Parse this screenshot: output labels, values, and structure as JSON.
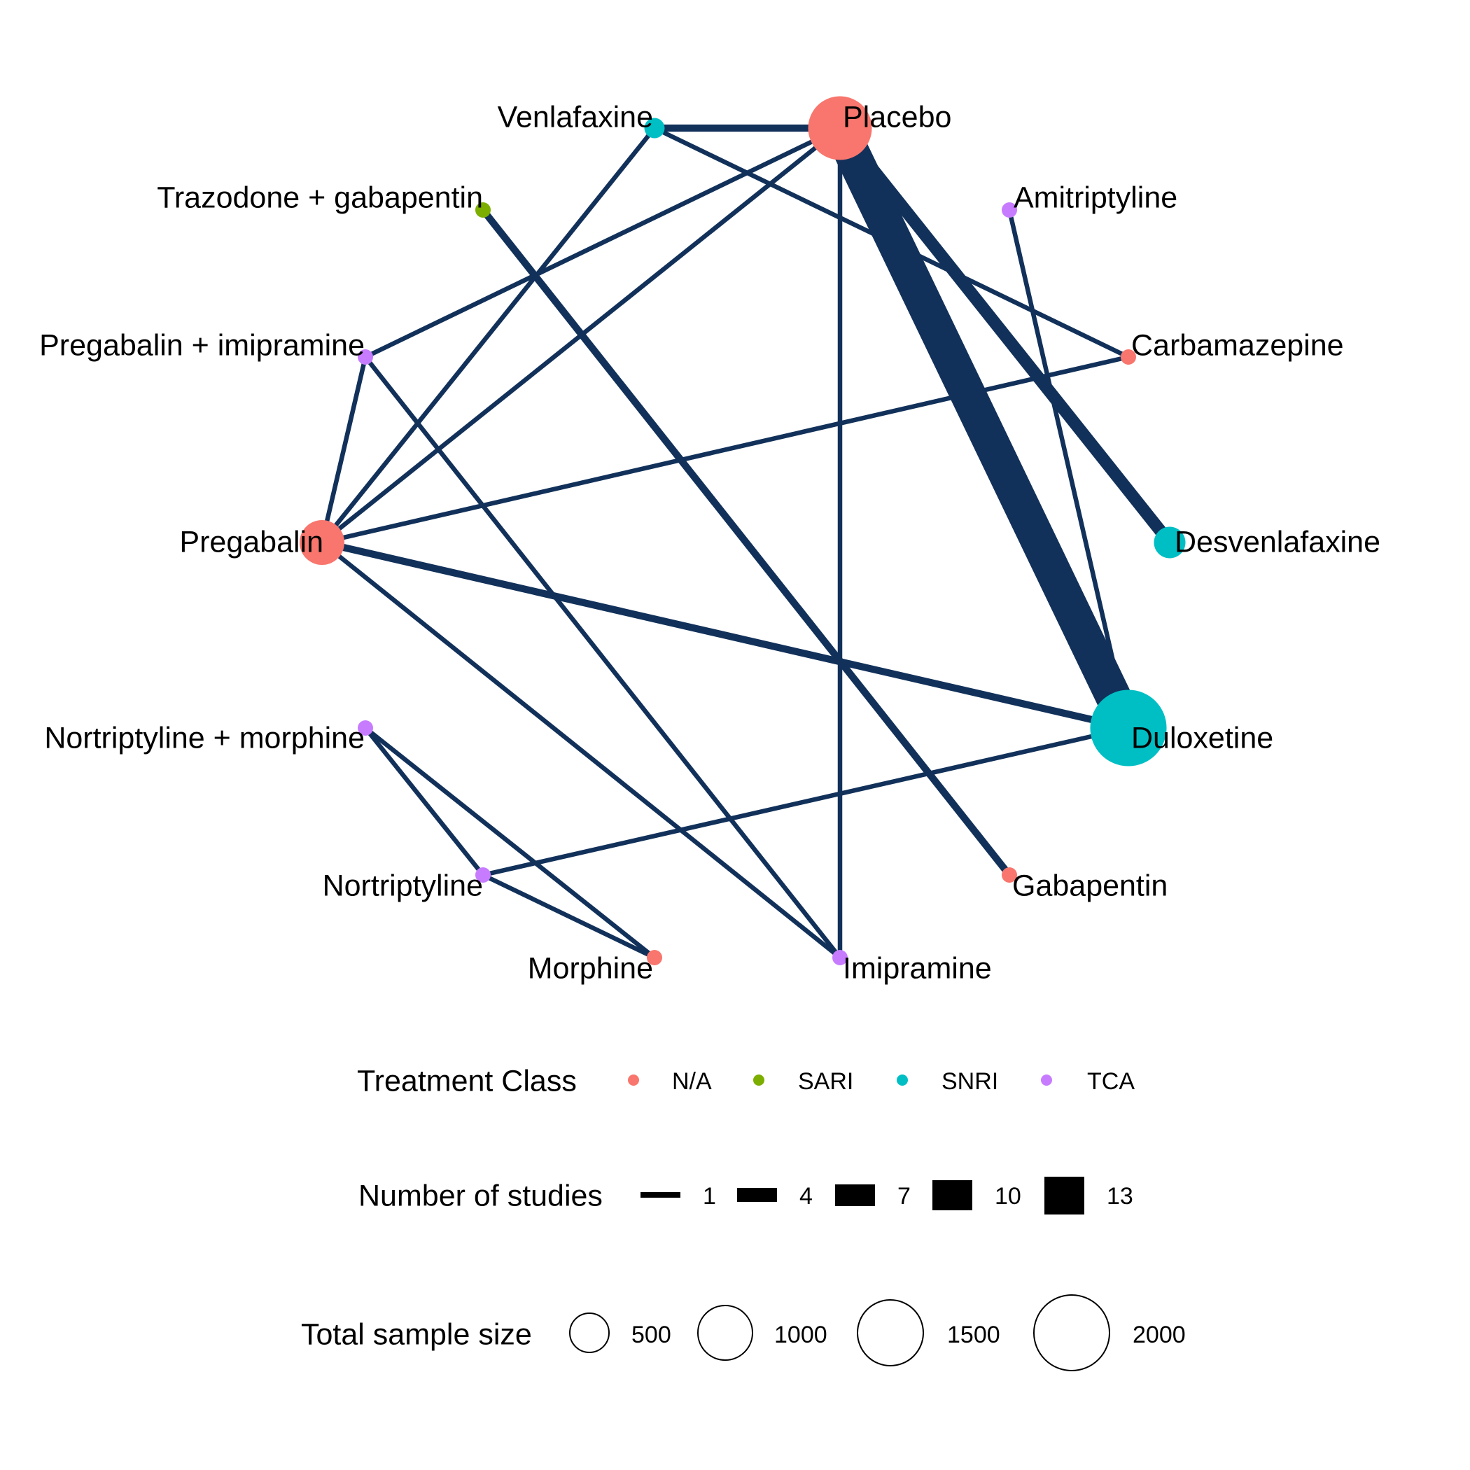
{
  "edge_color": "#12315a",
  "class_colors": {
    "N/A": "#f8766d",
    "SARI": "#7cae00",
    "SNRI": "#00bfc4",
    "TCA": "#c77cff"
  },
  "nodes": [
    {
      "id": "placebo",
      "label": "Placebo",
      "class": "N/A",
      "size": 1880
    },
    {
      "id": "amitriptyline",
      "label": "Amitriptyline",
      "class": "TCA",
      "size": 40
    },
    {
      "id": "carbamazepine",
      "label": "Carbamazepine",
      "class": "N/A",
      "size": 40
    },
    {
      "id": "desvenlafaxine",
      "label": "Desvenlafaxine",
      "class": "SNRI",
      "size": 460
    },
    {
      "id": "duloxetine",
      "label": "Duloxetine",
      "class": "SNRI",
      "size": 2700
    },
    {
      "id": "gabapentin",
      "label": "Gabapentin",
      "class": "N/A",
      "size": 40
    },
    {
      "id": "imipramine",
      "label": "Imipramine",
      "class": "TCA",
      "size": 40
    },
    {
      "id": "morphine",
      "label": "Morphine",
      "class": "N/A",
      "size": 40
    },
    {
      "id": "nortriptyline",
      "label": "Nortriptyline",
      "class": "TCA",
      "size": 110
    },
    {
      "id": "nortriptyline_morphine",
      "label": "Nortriptyline + morphine",
      "class": "TCA",
      "size": 40
    },
    {
      "id": "pregabalin",
      "label": "Pregabalin",
      "class": "N/A",
      "size": 930
    },
    {
      "id": "pregabalin_imipramine",
      "label": "Pregabalin + imipramine",
      "class": "TCA",
      "size": 40
    },
    {
      "id": "trazodone_gabapentin",
      "label": "Trazodone + gabapentin",
      "class": "SARI",
      "size": 90
    },
    {
      "id": "venlafaxine",
      "label": "Venlafaxine",
      "class": "SNRI",
      "size": 190
    }
  ],
  "edges": [
    {
      "from": "placebo",
      "to": "venlafaxine",
      "studies": 2
    },
    {
      "from": "placebo",
      "to": "duloxetine",
      "studies": 13
    },
    {
      "from": "placebo",
      "to": "desvenlafaxine",
      "studies": 4
    },
    {
      "from": "placebo",
      "to": "imipramine",
      "studies": 1
    },
    {
      "from": "placebo",
      "to": "pregabalin",
      "studies": 1
    },
    {
      "from": "placebo",
      "to": "pregabalin_imipramine",
      "studies": 1
    },
    {
      "from": "venlafaxine",
      "to": "carbamazepine",
      "studies": 1
    },
    {
      "from": "venlafaxine",
      "to": "pregabalin",
      "studies": 1
    },
    {
      "from": "amitriptyline",
      "to": "duloxetine",
      "studies": 1
    },
    {
      "from": "carbamazepine",
      "to": "pregabalin",
      "studies": 1
    },
    {
      "from": "pregabalin",
      "to": "duloxetine",
      "studies": 2
    },
    {
      "from": "pregabalin",
      "to": "pregabalin_imipramine",
      "studies": 1
    },
    {
      "from": "pregabalin",
      "to": "imipramine",
      "studies": 1
    },
    {
      "from": "pregabalin_imipramine",
      "to": "imipramine",
      "studies": 1
    },
    {
      "from": "trazodone_gabapentin",
      "to": "gabapentin",
      "studies": 2
    },
    {
      "from": "duloxetine",
      "to": "nortriptyline",
      "studies": 1
    },
    {
      "from": "nortriptyline_morphine",
      "to": "nortriptyline",
      "studies": 1
    },
    {
      "from": "nortriptyline_morphine",
      "to": "morphine",
      "studies": 1
    },
    {
      "from": "nortriptyline",
      "to": "morphine",
      "studies": 1
    }
  ],
  "legend": {
    "class_title": "Treatment Class",
    "classes": [
      "N/A",
      "SARI",
      "SNRI",
      "TCA"
    ],
    "studies_title": "Number of studies",
    "studies": [
      1,
      4,
      7,
      10,
      13
    ],
    "sample_title": "Total sample size",
    "samples": [
      500,
      1000,
      1500,
      2000
    ]
  }
}
